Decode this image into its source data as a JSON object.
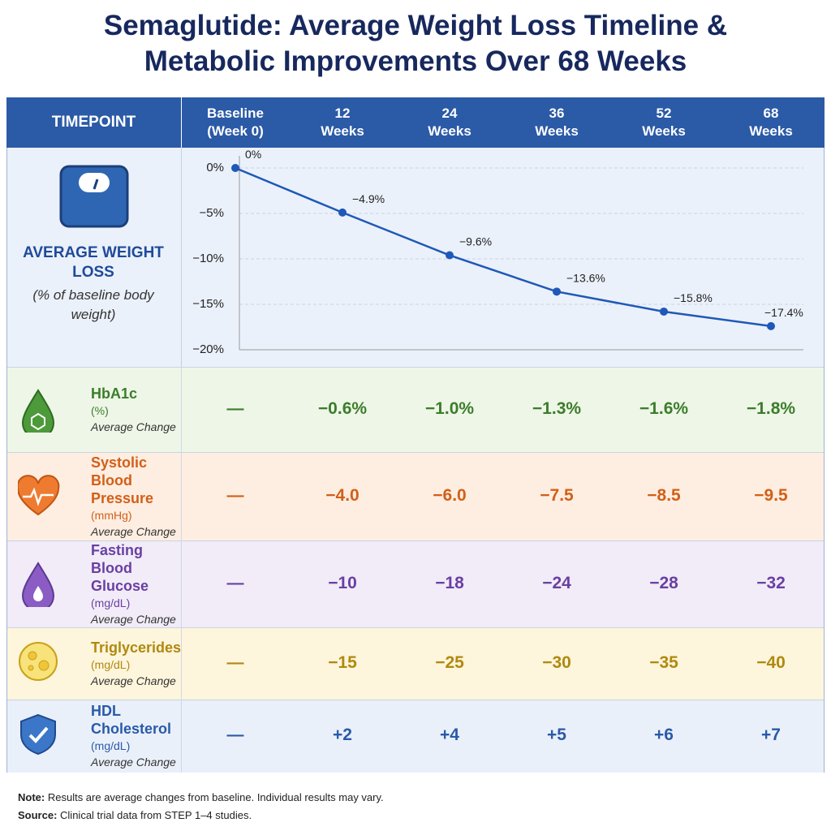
{
  "title": "Semaglutide: Average Weight Loss Timeline & Metabolic Improvements Over 68 Weeks",
  "header": {
    "label": "TIMEPOINT"
  },
  "weight_row": {
    "label": "AVERAGE WEIGHT LOSS",
    "sublabel": "(% of baseline body weight)"
  },
  "chart_data": {
    "type": "line",
    "categories": [
      "Baseline (Week 0)",
      "12 Weeks",
      "24 Weeks",
      "36 Weeks",
      "52 Weeks",
      "68 Weeks"
    ],
    "values": [
      0,
      -4.9,
      -9.6,
      -13.6,
      -15.8,
      -17.4
    ],
    "value_labels": [
      "0%",
      "−4.9%",
      "−9.6%",
      "−13.6%",
      "−15.8%",
      "−17.4%"
    ],
    "color": "#1f58b8",
    "ylim": [
      -20,
      0
    ],
    "yticks": [
      {
        "value": 0,
        "label": "0%"
      },
      {
        "value": -5,
        "label": "−5%"
      },
      {
        "value": -10,
        "label": "−10%"
      },
      {
        "value": -15,
        "label": "−15%"
      },
      {
        "value": -20,
        "label": "−20%"
      }
    ],
    "grid": true
  },
  "rows": [
    {
      "name": "HbA1c",
      "unit": "(%)",
      "note": "Average Change",
      "values": [
        "—",
        "−0.6%",
        "−1.0%",
        "−1.3%",
        "−1.6%",
        "−1.8%"
      ]
    },
    {
      "name": "Systolic Blood Pressure",
      "unit": "(mmHg)",
      "note": "Average Change",
      "values": [
        "—",
        "−4.0",
        "−6.0",
        "−7.5",
        "−8.5",
        "−9.5"
      ]
    },
    {
      "name": "Fasting Blood Glucose",
      "unit": "(mg/dL)",
      "note": "Average Change",
      "values": [
        "—",
        "−10",
        "−18",
        "−24",
        "−28",
        "−32"
      ]
    },
    {
      "name": "Triglycerides",
      "unit": "(mg/dL)",
      "note": "Average Change",
      "values": [
        "—",
        "−15",
        "−25",
        "−30",
        "−35",
        "−40"
      ]
    },
    {
      "name": "HDL Cholesterol",
      "unit": "(mg/dL)",
      "note": "Average Change",
      "values": [
        "—",
        "+2",
        "+4",
        "+5",
        "+6",
        "+7"
      ]
    }
  ],
  "footer": {
    "note_label": "Note:",
    "note": "Results are average changes from baseline. Individual results may vary.",
    "source_label": "Source:",
    "source": "Clinical trial data from STEP 1–4 studies."
  }
}
